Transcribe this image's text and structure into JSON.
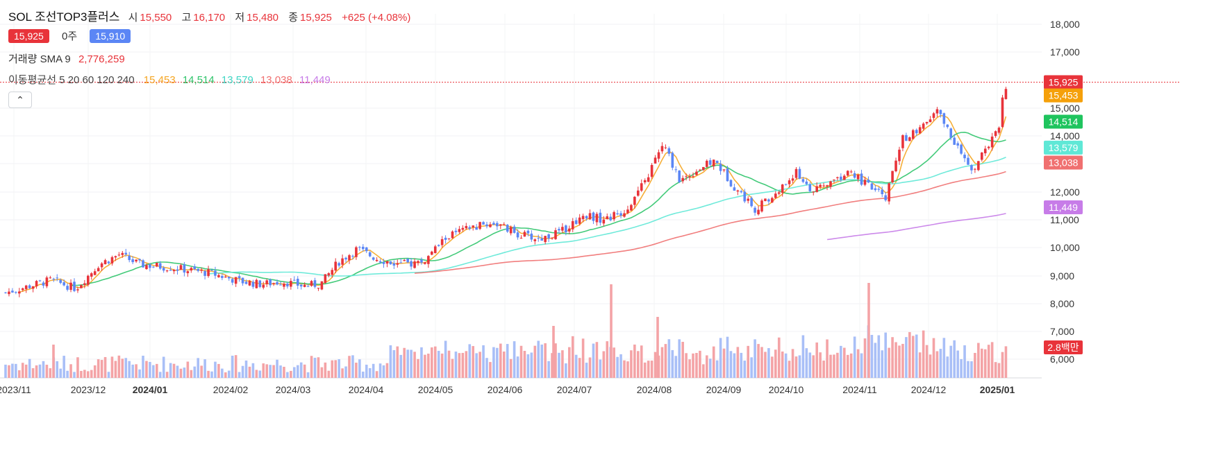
{
  "header": {
    "title": "SOL 조선TOP3플러스",
    "open_label": "시",
    "open": "15,550",
    "high_label": "고",
    "high": "16,170",
    "low_label": "저",
    "low": "15,480",
    "close_label": "종",
    "close": "15,925",
    "change": "+625 (+4.08%)",
    "ask_price": "15,925",
    "qty": "0주",
    "bid_price": "15,910",
    "volume_label": "거래량 SMA 9",
    "volume_sma": "2,776,259",
    "ma_label": "이동평균선 5 20 60 120 240",
    "ma_values": [
      "15,453",
      "14,514",
      "13,579",
      "13,038",
      "11,449"
    ],
    "collapse_icon": "chevron-up-icon"
  },
  "colors": {
    "up": "#e8333a",
    "down": "#5b86f5",
    "ma5": "#f5a623",
    "ma20": "#2ec46a",
    "ma60": "#5fe8d6",
    "ma120": "#f07070",
    "ma240": "#c77ce8"
  },
  "chart_data": {
    "type": "candlestick",
    "y_axis": {
      "ticks": [
        "6,000",
        "7,000",
        "8,000",
        "9,000",
        "10,000",
        "11,000",
        "12,000",
        "13,000",
        "14,000",
        "15,000",
        "17,000",
        "18,000"
      ],
      "ylim": [
        5400,
        18400
      ]
    },
    "x_axis": {
      "labels": [
        "2023/11",
        "2023/12",
        "2024/01",
        "2024/02",
        "2024/03",
        "2024/04",
        "2024/05",
        "2024/06",
        "2024/07",
        "2024/08",
        "2024/09",
        "2024/10",
        "2024/11",
        "2024/12",
        "2025/01"
      ],
      "bold": [
        "2024/01",
        "2025/01"
      ]
    },
    "price_tags": [
      {
        "value": "15,925",
        "y": 15925,
        "color": "#e8333a"
      },
      {
        "value": "15,453",
        "y": 15453,
        "color": "#f5a00a"
      },
      {
        "value": "14,514",
        "y": 14514,
        "color": "#1fc45e"
      },
      {
        "value": "13,579",
        "y": 13579,
        "color": "#5fe8d6"
      },
      {
        "value": "13,038",
        "y": 13038,
        "color": "#f07070"
      },
      {
        "value": "11,449",
        "y": 11449,
        "color": "#c77ce8"
      }
    ],
    "volume_tag": "2.8백만",
    "current_price": 15925,
    "anchors": [
      {
        "date": "2023/11",
        "price": 8400
      },
      {
        "date": "2023/11",
        "price": 8850
      },
      {
        "date": "2023/11",
        "price": 8550
      },
      {
        "date": "2023/12",
        "price": 9400
      },
      {
        "date": "2023/12",
        "price": 9750
      },
      {
        "date": "2023/12",
        "price": 9400
      },
      {
        "date": "2024/01",
        "price": 9300
      },
      {
        "date": "2024/01",
        "price": 9100
      },
      {
        "date": "2024/02",
        "price": 8800
      },
      {
        "date": "2024/02",
        "price": 8700
      },
      {
        "date": "2024/02",
        "price": 8800
      },
      {
        "date": "2024/03",
        "price": 8650
      },
      {
        "date": "2024/03",
        "price": 8700
      },
      {
        "date": "2024/03",
        "price": 9500
      },
      {
        "date": "2024/03",
        "price": 9950
      },
      {
        "date": "2024/04",
        "price": 9600
      },
      {
        "date": "2024/04",
        "price": 9400
      },
      {
        "date": "2024/04",
        "price": 9500
      },
      {
        "date": "2024/05",
        "price": 10400
      },
      {
        "date": "2024/05",
        "price": 10700
      },
      {
        "date": "2024/05",
        "price": 10900
      },
      {
        "date": "2024/06",
        "price": 10500
      },
      {
        "date": "2024/06",
        "price": 10300
      },
      {
        "date": "2024/06",
        "price": 10600
      },
      {
        "date": "2024/07",
        "price": 11200
      },
      {
        "date": "2024/07",
        "price": 11000
      },
      {
        "date": "2024/07",
        "price": 11300
      },
      {
        "date": "2024/07",
        "price": 12300
      },
      {
        "date": "2024/08",
        "price": 13700
      },
      {
        "date": "2024/08",
        "price": 12400
      },
      {
        "date": "2024/08",
        "price": 12800
      },
      {
        "date": "2024/08",
        "price": 13100
      },
      {
        "date": "2024/09",
        "price": 12200
      },
      {
        "date": "2024/09",
        "price": 11400
      },
      {
        "date": "2024/09",
        "price": 11900
      },
      {
        "date": "2024/10",
        "price": 12700
      },
      {
        "date": "2024/10",
        "price": 12000
      },
      {
        "date": "2024/10",
        "price": 12400
      },
      {
        "date": "2024/10",
        "price": 12700
      },
      {
        "date": "2024/11",
        "price": 12200
      },
      {
        "date": "2024/11",
        "price": 11800
      },
      {
        "date": "2024/11",
        "price": 13900
      },
      {
        "date": "2024/11",
        "price": 14200
      },
      {
        "date": "2024/12",
        "price": 14900
      },
      {
        "date": "2024/12",
        "price": 13800
      },
      {
        "date": "2024/12",
        "price": 12700
      },
      {
        "date": "2024/12",
        "price": 13700
      },
      {
        "date": "2025/01",
        "price": 14200
      },
      {
        "date": "2025/01",
        "price": 15400
      },
      {
        "date": "2025/01",
        "price": 15900
      }
    ],
    "volume_range_label": [
      "6,000",
      "7,000",
      "8,000"
    ]
  }
}
